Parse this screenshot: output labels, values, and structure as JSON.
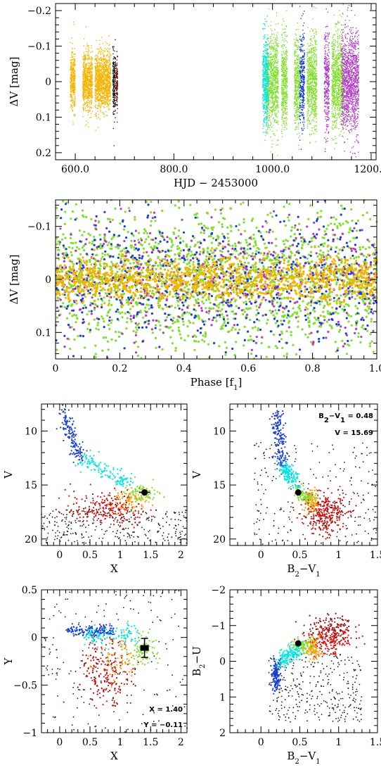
{
  "chart_data": [
    {
      "id": "lightcurve",
      "type": "scatter",
      "xlabel": "HJD − 2453000",
      "ylabel": "ΔV [mag]",
      "xlim": [
        560,
        1210
      ],
      "ylim": [
        0.22,
        -0.22
      ],
      "y_inverted": true,
      "xticks": [
        600,
        800,
        1000,
        1200
      ],
      "yticks": [
        -0.2,
        -0.1,
        0,
        0.1,
        0.2
      ],
      "series": [
        {
          "color": "#f5b400",
          "x_ranges": [
            [
              590,
              600
            ],
            [
              615,
              635
            ],
            [
              640,
              672
            ]
          ],
          "y_spread": 0.1
        },
        {
          "color": "#1a1a1a",
          "x_ranges": [
            [
              676,
              682
            ]
          ],
          "y_spread": 0.12
        },
        {
          "color": "#8b0000",
          "x_ranges": [
            [
              683,
              686
            ]
          ],
          "y_spread": 0.1
        },
        {
          "color": "#7fe02a",
          "x_ranges": [
            [
              985,
              1012
            ],
            [
              1018,
              1030
            ],
            [
              1044,
              1056
            ],
            [
              1070,
              1090
            ],
            [
              1120,
              1145
            ]
          ],
          "y_spread": 0.16
        },
        {
          "color": "#00e5e5",
          "x_ranges": [
            [
              980,
              992
            ]
          ],
          "y_spread": 0.15
        },
        {
          "color": "#1a3fd8",
          "x_ranges": [
            [
              1055,
              1065
            ]
          ],
          "y_spread": 0.17
        },
        {
          "color": "#b23ac8",
          "x_ranges": [
            [
              1105,
              1115
            ],
            [
              1140,
              1175
            ]
          ],
          "y_spread": 0.18
        }
      ]
    },
    {
      "id": "phase",
      "type": "scatter",
      "xlabel": "Phase [f1]",
      "ylabel": "ΔV [mag]",
      "xlim": [
        0,
        1
      ],
      "ylim": [
        0.15,
        -0.15
      ],
      "y_inverted": true,
      "xticks": [
        0,
        0.2,
        0.4,
        0.6,
        0.8,
        1
      ],
      "yticks": [
        -0.1,
        0,
        0.1
      ],
      "series": [
        {
          "color": "#7fe02a",
          "n": 1900,
          "y_spread": 0.16
        },
        {
          "color": "#b23ac8",
          "n": 500,
          "y_spread": 0.16
        },
        {
          "color": "#1a3fd8",
          "n": 650,
          "y_spread": 0.14
        },
        {
          "color": "#f5b400",
          "n": 1300,
          "y_spread": 0.05
        }
      ]
    },
    {
      "id": "v-vs-x",
      "type": "scatter",
      "xlabel": "X",
      "ylabel": "V",
      "xlim": [
        -0.3,
        2.1
      ],
      "ylim": [
        20.6,
        7.5
      ],
      "y_inverted": true,
      "xticks": [
        0,
        0.5,
        1,
        1.5,
        2
      ],
      "yticks": [
        10,
        15,
        20
      ],
      "highlight": {
        "x": 1.4,
        "y": 15.69
      }
    },
    {
      "id": "v-vs-b2v1",
      "type": "scatter",
      "xlabel": "B2−V1",
      "ylabel": "V",
      "xlim": [
        -0.4,
        1.5
      ],
      "ylim": [
        20.6,
        7.5
      ],
      "y_inverted": true,
      "xticks": [
        0,
        0.5,
        1,
        1.5
      ],
      "yticks": [
        10,
        15,
        20
      ],
      "highlight": {
        "x": 0.48,
        "y": 15.69
      },
      "annotations": [
        "B2−V1 = 0.48",
        "V = 15.69"
      ]
    },
    {
      "id": "y-vs-x",
      "type": "scatter",
      "xlabel": "X",
      "ylabel": "Y",
      "xlim": [
        -0.3,
        2.1
      ],
      "ylim": [
        -1,
        0.5
      ],
      "xticks": [
        0,
        0.5,
        1,
        1.5,
        2
      ],
      "yticks": [
        0.5,
        0,
        -0.5,
        -1
      ],
      "highlight": {
        "x": 1.4,
        "y": -0.11,
        "err": 0.1
      },
      "annotations": [
        "X = 1.40",
        "Y = −0.11"
      ]
    },
    {
      "id": "b2u-vs-b2v1",
      "type": "scatter",
      "xlabel": "B2−V1",
      "ylabel": "B2−U",
      "xlim": [
        -0.4,
        1.5
      ],
      "ylim": [
        2,
        -2
      ],
      "y_inverted": true,
      "xticks": [
        0,
        0.5,
        1,
        1.5
      ],
      "yticks": [
        2,
        1,
        0,
        -1,
        -2
      ],
      "highlight": {
        "x": 0.48,
        "y": -0.5
      }
    }
  ],
  "palette": {
    "blue": "#1a3fd8",
    "cyan": "#00e5e5",
    "green": "#7fe02a",
    "orange": "#ff9a00",
    "red": "#e01010",
    "dark_red": "#8b1010",
    "black": "#1a1a1a"
  }
}
